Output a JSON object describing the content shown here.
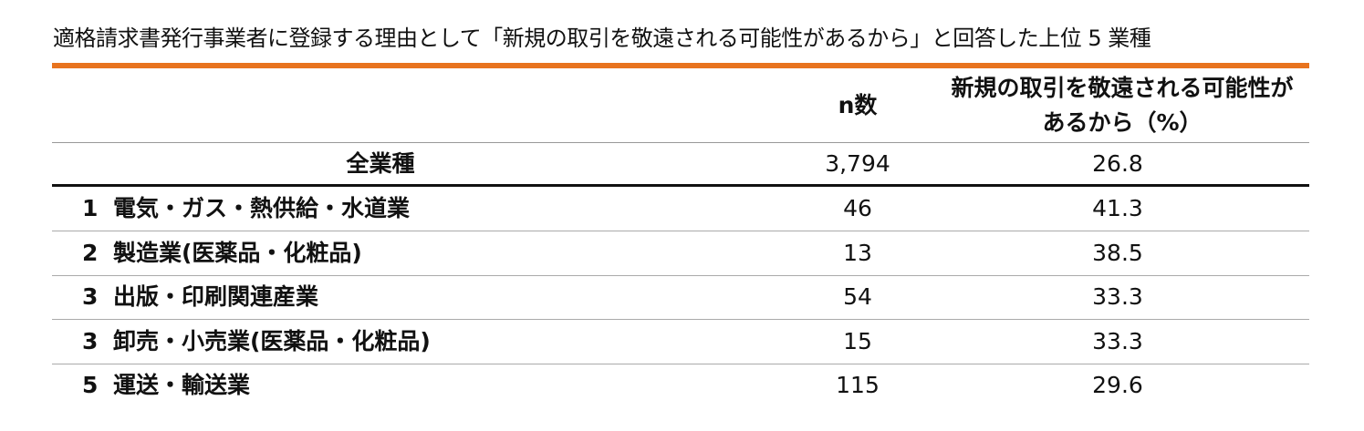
{
  "title": "適格請求書発行事業者に登録する理由として「新規の取引を敬遠される可能性があるから」と回答した上位 5 業種",
  "table": {
    "header": [
      "n数",
      "新規の取引を敬遠される可能性があるから（%）"
    ],
    "total": [
      "全業種",
      "3,794",
      26.8
    ],
    "rows": [
      [
        "1",
        "電気・ガス・熱供給・水道業",
        46,
        41.3
      ],
      [
        "2",
        "製造業(医薬品・化粧品)",
        13,
        38.5
      ],
      [
        "3",
        "出版・印刷関連産業",
        54,
        33.3
      ],
      [
        "3",
        "卸売・小売業(医薬品・化粧品)",
        15,
        33.3
      ],
      [
        "5",
        "運送・輸送業",
        115,
        29.6
      ]
    ]
  }
}
